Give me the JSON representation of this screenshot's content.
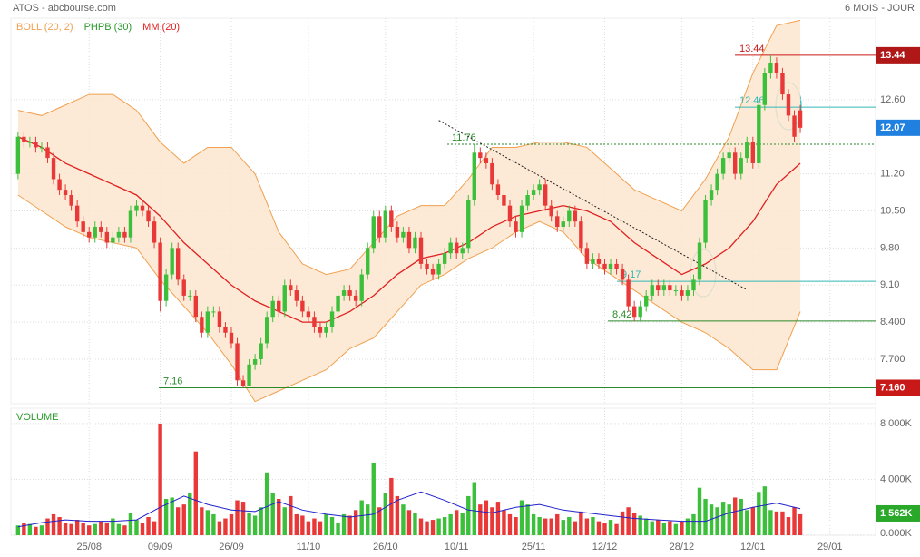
{
  "chart_data": {
    "type": "candlestick",
    "title": "ATOS - abcbourse.com",
    "period": "6 MOIS - JOUR",
    "legend": [
      {
        "name": "BOLL (20, 2)",
        "color": "#f0a050"
      },
      {
        "name": "PHPB (30)",
        "color": "#2a9a2a"
      },
      {
        "name": "MM (20)",
        "color": "#e02020"
      }
    ],
    "volume_title": "VOLUME",
    "up_color": "#3cc03c",
    "down_color": "#e83838",
    "xlim": [
      -1.2,
      144.7
    ],
    "xticks": [
      {
        "value": 12,
        "label": "25/08"
      },
      {
        "value": 24,
        "label": "09/09"
      },
      {
        "value": 36,
        "label": "26/09"
      },
      {
        "value": 49,
        "label": "11/10"
      },
      {
        "value": 62,
        "label": "26/10"
      },
      {
        "value": 74,
        "label": "10/11"
      },
      {
        "value": 87,
        "label": "25/11"
      },
      {
        "value": 99,
        "label": "12/12"
      },
      {
        "value": 112,
        "label": "28/12"
      },
      {
        "value": 124,
        "label": "12/01"
      },
      {
        "value": 137,
        "label": "29/01"
      }
    ],
    "ylim": [
      6.86,
      14.14
    ],
    "yticks": [
      {
        "value": 12.6,
        "label": "12.60"
      },
      {
        "value": 11.2,
        "label": "11.20"
      },
      {
        "value": 10.5,
        "label": "10.50"
      },
      {
        "value": 9.8,
        "label": "9.80"
      },
      {
        "value": 9.1,
        "label": "9.10"
      },
      {
        "value": 8.4,
        "label": "8.400"
      },
      {
        "value": 7.7,
        "label": "7.700"
      }
    ],
    "markers": [
      {
        "value": 13.44,
        "label": "13.44",
        "color": "#b01818"
      },
      {
        "value": 12.07,
        "label": "12.07",
        "color": "#2080e0"
      },
      {
        "value": 7.16,
        "label": "7.160",
        "color": "#c81818"
      }
    ],
    "levels": [
      {
        "value": 13.44,
        "label": "13.44",
        "color": "#c81818"
      },
      {
        "value": 12.46,
        "label": "12.46",
        "color": "#30b8b8"
      },
      {
        "value": 11.76,
        "label": "11.76",
        "color": "#2a8a2a"
      },
      {
        "value": 9.17,
        "label": "9.17",
        "color": "#30b8b8"
      },
      {
        "value": 8.42,
        "label": "8.42",
        "color": "#2a8a2a"
      },
      {
        "value": 7.16,
        "label": "7.16",
        "color": "#2a8a2a"
      }
    ],
    "trendline": {
      "x": [
        71,
        123
      ],
      "y": [
        12.21,
        9.01
      ]
    },
    "open": [
      11.2,
      11.9,
      11.8,
      11.8,
      11.7,
      11.7,
      11.5,
      11.1,
      10.9,
      10.8,
      10.6,
      10.3,
      10.1,
      10.0,
      10.2,
      10.1,
      9.9,
      10.0,
      10.1,
      10.0,
      10.5,
      10.6,
      10.5,
      10.3,
      9.9,
      8.8,
      9.3,
      9.8,
      9.2,
      8.9,
      8.9,
      8.5,
      8.2,
      8.6,
      8.6,
      8.3,
      8.2,
      8.0,
      7.3,
      7.2,
      7.6,
      7.7,
      8.0,
      8.5,
      8.8,
      8.6,
      9.1,
      9.0,
      8.8,
      8.6,
      8.5,
      8.3,
      8.2,
      8.3,
      8.6,
      8.9,
      9.0,
      8.9,
      8.8,
      9.3,
      9.8,
      10.4,
      10.0,
      10.5,
      10.2,
      10.0,
      10.1,
      9.8,
      10.0,
      9.5,
      9.4,
      9.3,
      9.5,
      9.7,
      9.9,
      9.7,
      9.8,
      10.7,
      11.6,
      11.5,
      11.4,
      11.0,
      10.8,
      10.6,
      10.3,
      10.1,
      10.6,
      10.8,
      10.9,
      11.0,
      10.6,
      10.4,
      10.2,
      10.3,
      10.5,
      10.3,
      9.8,
      9.5,
      9.6,
      9.5,
      9.4,
      9.5,
      9.4,
      9.2,
      8.7,
      8.5,
      8.7,
      8.9,
      9.1,
      9.0,
      9.1,
      9.0,
      9.0,
      8.9,
      9.0,
      9.2,
      9.9,
      10.7,
      10.9,
      11.2,
      11.5,
      11.6,
      11.2,
      11.5,
      11.8,
      11.4,
      12.5,
      13.1,
      13.3,
      13.1,
      12.7,
      12.3,
      12.4
    ],
    "high": [
      12.0,
      12.0,
      11.9,
      11.9,
      11.8,
      11.8,
      11.6,
      11.2,
      11.0,
      10.9,
      10.7,
      10.4,
      10.2,
      10.3,
      10.3,
      10.2,
      10.1,
      10.2,
      10.2,
      10.6,
      10.7,
      10.7,
      10.6,
      10.4,
      10.0,
      9.4,
      9.9,
      9.9,
      9.3,
      9.0,
      9.0,
      8.6,
      8.7,
      8.7,
      8.7,
      8.4,
      8.3,
      8.1,
      7.4,
      7.7,
      7.8,
      8.1,
      8.6,
      8.9,
      8.9,
      9.2,
      9.2,
      9.1,
      8.9,
      8.7,
      8.6,
      8.4,
      8.4,
      8.7,
      9.0,
      9.1,
      9.1,
      9.0,
      9.4,
      9.9,
      10.5,
      10.5,
      10.6,
      10.6,
      10.3,
      10.2,
      10.2,
      10.1,
      10.1,
      9.6,
      9.5,
      9.6,
      9.8,
      10.0,
      10.0,
      9.9,
      10.8,
      11.76,
      11.7,
      11.6,
      11.5,
      11.1,
      10.9,
      10.7,
      10.4,
      10.7,
      10.9,
      11.0,
      11.1,
      11.1,
      10.7,
      10.5,
      10.4,
      10.6,
      10.6,
      10.4,
      9.9,
      9.7,
      9.7,
      9.6,
      9.6,
      9.6,
      9.5,
      9.3,
      8.8,
      8.8,
      9.0,
      9.2,
      9.2,
      9.2,
      9.2,
      9.1,
      9.1,
      9.1,
      9.3,
      10.0,
      10.8,
      11.0,
      11.3,
      11.6,
      11.7,
      11.7,
      11.6,
      11.9,
      11.9,
      12.6,
      13.2,
      13.44,
      13.4,
      13.2,
      12.8,
      12.4,
      12.5
    ],
    "low": [
      11.1,
      11.7,
      11.7,
      11.6,
      11.6,
      11.4,
      11.0,
      10.8,
      10.7,
      10.5,
      10.2,
      10.0,
      9.9,
      9.9,
      10.0,
      9.8,
      9.8,
      9.9,
      9.9,
      9.9,
      10.4,
      10.4,
      10.2,
      9.8,
      8.6,
      8.7,
      9.2,
      9.1,
      8.8,
      8.8,
      8.4,
      8.1,
      8.1,
      8.5,
      8.2,
      8.1,
      7.9,
      7.2,
      7.16,
      7.2,
      7.5,
      7.6,
      7.9,
      8.4,
      8.5,
      8.5,
      8.9,
      8.7,
      8.5,
      8.4,
      8.2,
      8.1,
      8.1,
      8.2,
      8.5,
      8.8,
      8.8,
      8.7,
      8.7,
      9.2,
      9.7,
      9.9,
      9.9,
      10.1,
      9.9,
      9.9,
      9.7,
      9.7,
      9.4,
      9.3,
      9.2,
      9.2,
      9.4,
      9.6,
      9.6,
      9.6,
      9.7,
      10.6,
      11.4,
      11.3,
      10.9,
      10.7,
      10.5,
      10.2,
      10.0,
      10.0,
      10.5,
      10.7,
      10.8,
      10.5,
      10.3,
      10.1,
      10.1,
      10.2,
      10.2,
      9.7,
      9.4,
      9.4,
      9.4,
      9.3,
      9.3,
      9.3,
      9.1,
      8.6,
      8.42,
      8.43,
      8.6,
      8.8,
      8.9,
      8.9,
      8.9,
      8.9,
      8.8,
      8.8,
      8.9,
      9.1,
      9.8,
      10.6,
      10.8,
      11.1,
      11.4,
      11.1,
      11.1,
      11.4,
      11.3,
      11.3,
      12.4,
      13.0,
      13.0,
      12.6,
      12.2,
      11.8,
      11.97
    ],
    "close": [
      11.9,
      11.8,
      11.8,
      11.7,
      11.7,
      11.5,
      11.1,
      10.9,
      10.8,
      10.6,
      10.3,
      10.1,
      10.0,
      10.2,
      10.1,
      9.9,
      10.0,
      10.1,
      10.0,
      10.5,
      10.6,
      10.5,
      10.3,
      9.9,
      8.8,
      9.3,
      9.8,
      9.2,
      8.9,
      8.9,
      8.5,
      8.2,
      8.6,
      8.6,
      8.3,
      8.2,
      8.0,
      7.3,
      7.2,
      7.6,
      7.7,
      8.0,
      8.5,
      8.8,
      8.6,
      9.1,
      9.0,
      8.8,
      8.6,
      8.5,
      8.3,
      8.2,
      8.3,
      8.6,
      8.9,
      9.0,
      8.9,
      8.8,
      9.3,
      9.8,
      10.4,
      10.0,
      10.5,
      10.2,
      10.0,
      10.1,
      9.8,
      10.0,
      9.5,
      9.4,
      9.3,
      9.5,
      9.7,
      9.9,
      9.7,
      9.8,
      10.7,
      11.6,
      11.5,
      11.4,
      11.0,
      10.8,
      10.6,
      10.3,
      10.1,
      10.6,
      10.8,
      10.9,
      11.0,
      10.6,
      10.4,
      10.2,
      10.3,
      10.5,
      10.3,
      9.8,
      9.5,
      9.6,
      9.5,
      9.4,
      9.5,
      9.4,
      9.2,
      8.7,
      8.5,
      8.7,
      8.9,
      9.1,
      9.0,
      9.1,
      9.0,
      9.0,
      8.9,
      9.0,
      9.2,
      9.9,
      10.7,
      10.9,
      11.2,
      11.5,
      11.6,
      11.2,
      11.5,
      11.8,
      11.4,
      12.5,
      13.1,
      13.3,
      13.1,
      12.7,
      12.3,
      11.9,
      12.07
    ],
    "band_x": [
      0,
      4,
      8,
      12,
      16,
      20,
      24,
      28,
      32,
      36,
      40,
      44,
      48,
      52,
      56,
      60,
      64,
      68,
      72,
      76,
      80,
      84,
      88,
      92,
      96,
      100,
      104,
      108,
      112,
      116,
      120,
      124,
      128,
      132
    ],
    "boll_upper": [
      12.4,
      12.3,
      12.5,
      12.7,
      12.7,
      12.4,
      11.8,
      11.4,
      11.7,
      11.7,
      11.2,
      10.1,
      9.5,
      9.3,
      9.4,
      9.9,
      10.4,
      10.6,
      10.6,
      11.1,
      11.7,
      11.7,
      11.8,
      11.8,
      11.7,
      11.3,
      10.9,
      10.7,
      10.5,
      11.1,
      11.9,
      13.1,
      14.0,
      14.1
    ],
    "boll_lower": [
      10.8,
      10.5,
      10.2,
      10.0,
      9.9,
      9.8,
      9.2,
      8.7,
      8.2,
      7.6,
      6.9,
      7.1,
      7.3,
      7.5,
      7.9,
      8.1,
      8.6,
      9.1,
      9.3,
      9.6,
      9.8,
      10.1,
      10.3,
      10.1,
      9.6,
      9.3,
      9.0,
      8.7,
      8.4,
      8.2,
      7.9,
      7.5,
      7.5,
      8.6
    ],
    "mm": [
      11.9,
      11.7,
      11.4,
      11.2,
      11.0,
      10.8,
      10.4,
      9.9,
      9.5,
      9.1,
      8.8,
      8.6,
      8.4,
      8.4,
      8.6,
      8.9,
      9.3,
      9.6,
      9.7,
      9.9,
      10.2,
      10.4,
      10.5,
      10.6,
      10.5,
      10.3,
      9.9,
      9.6,
      9.3,
      9.5,
      9.8,
      10.3,
      11.0,
      11.4
    ],
    "volume_ylim": [
      0,
      9100
    ],
    "volume_yticks": [
      {
        "value": 8000,
        "label": "8 000K"
      },
      {
        "value": 4000,
        "label": "4 000K"
      },
      {
        "value": 0,
        "label": "0.000K"
      }
    ],
    "volume_marker": {
      "value": 1562,
      "label": "1 562K",
      "color": "#2aa82a"
    },
    "volume": [
      700,
      900,
      800,
      600,
      700,
      1200,
      1500,
      1300,
      900,
      800,
      1100,
      900,
      700,
      800,
      1000,
      900,
      1200,
      800,
      700,
      1600,
      1100,
      900,
      1300,
      1000,
      8000,
      2600,
      2700,
      2000,
      2200,
      3000,
      6000,
      2000,
      1800,
      1500,
      1000,
      1200,
      1500,
      2500,
      2400,
      1600,
      1400,
      2000,
      4500,
      3000,
      2600,
      2000,
      2800,
      1500,
      1400,
      1000,
      1200,
      1000,
      1500,
      1300,
      900,
      1500,
      1400,
      1800,
      2500,
      2200,
      5200,
      2000,
      3000,
      4100,
      2800,
      2200,
      1800,
      1600,
      1200,
      1000,
      1100,
      1200,
      1300,
      1500,
      1800,
      1600,
      2800,
      3800,
      2200,
      2500,
      2000,
      2400,
      1800,
      1500,
      1300,
      2500,
      2200,
      1500,
      1300,
      1200,
      1200,
      1500,
      1100,
      1300,
      1000,
      1700,
      1200,
      1300,
      1000,
      900,
      1100,
      800,
      1700,
      2000,
      1600,
      1400,
      1200,
      1000,
      1100,
      900,
      1000,
      800,
      1000,
      1200,
      1500,
      3400,
      2600,
      2200,
      2000,
      2400,
      2200,
      2700,
      2600,
      1800,
      2000,
      3100,
      3500,
      1800,
      1700,
      1700,
      1300,
      2000,
      1500
    ],
    "volume_avg": [
      600,
      900,
      1100,
      1000,
      1000,
      1100,
      2000,
      2800,
      2200,
      1800,
      1700,
      2400,
      1800,
      1500,
      1300,
      1500,
      2500,
      3100,
      2500,
      1800,
      1600,
      2000,
      2200,
      1800,
      1600,
      1400,
      1200,
      1100,
      1000,
      1000,
      1600,
      2000,
      2300,
      1900
    ],
    "volume_avg_color": "#2222cc"
  }
}
